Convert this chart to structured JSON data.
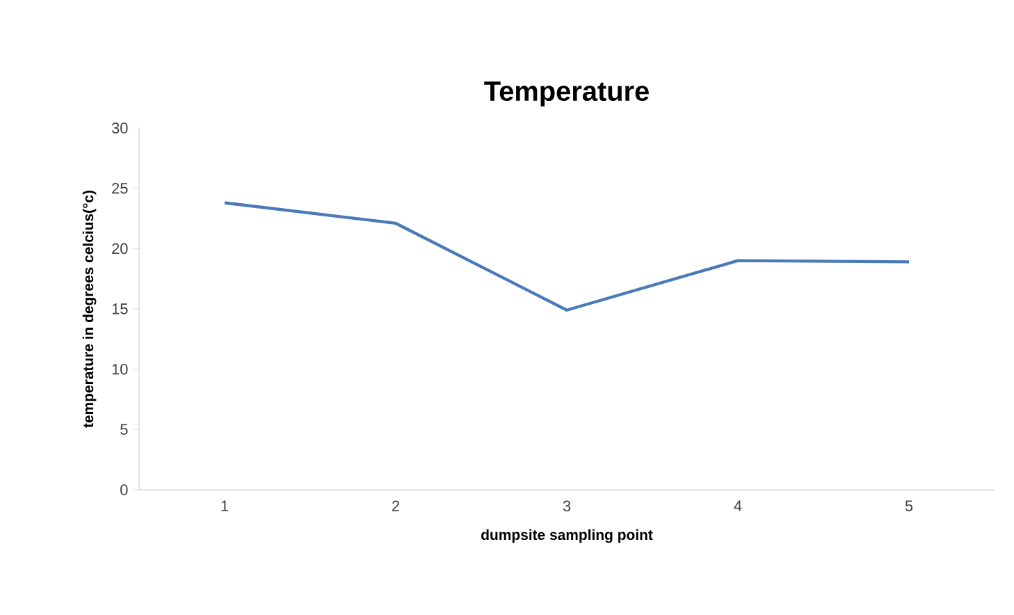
{
  "chart_data": {
    "type": "line",
    "title": "Temperature",
    "xlabel": "dumpsite sampling point",
    "ylabel": "temperature in degrees celcius(°c)",
    "categories": [
      "1",
      "2",
      "3",
      "4",
      "5"
    ],
    "series": [
      {
        "color": "#4a7ab8",
        "values": [
          23.8,
          22.1,
          14.9,
          19.0,
          18.9
        ]
      }
    ],
    "ylim": [
      0,
      30
    ],
    "yticks": [
      0,
      5,
      10,
      15,
      20,
      25,
      30
    ],
    "grid": false,
    "marker": "none",
    "line_style": "solid"
  }
}
